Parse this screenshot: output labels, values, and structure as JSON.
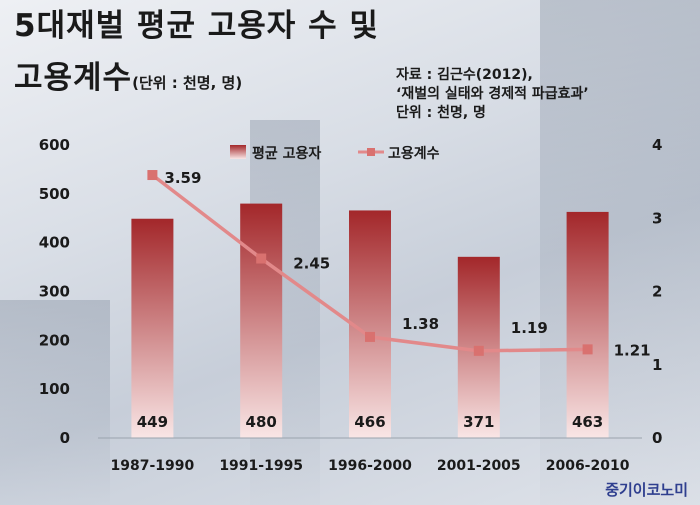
{
  "title": {
    "line1": "5대재벌 평균 고용자 수 및",
    "line2": "고용계수",
    "unit": "(단위 : 천명, 명)"
  },
  "source": {
    "line1": "자료 : 김근수(2012),",
    "line2": "‘재벌의 실태와 경제적 파급효과’",
    "line3": "단위 : 천명, 명"
  },
  "brand": "중기이코노미",
  "colors": {
    "bar_top": "#a3272a",
    "bar_bottom": "#f7e3e3",
    "line": "#e2898a",
    "marker": "#d9716f"
  },
  "chart_data": {
    "type": "bar",
    "categories": [
      "1987-1990",
      "1991-1995",
      "1996-2000",
      "2001-2005",
      "2006-2010"
    ],
    "series": [
      {
        "name": "평균 고용자",
        "type": "bar",
        "axis": "left",
        "values": [
          449,
          480,
          466,
          371,
          463
        ]
      },
      {
        "name": "고용계수",
        "type": "line",
        "axis": "right",
        "values": [
          3.59,
          2.45,
          1.38,
          1.19,
          1.21
        ]
      }
    ],
    "bar_labels": [
      "449",
      "480",
      "466",
      "371",
      "463"
    ],
    "line_labels": [
      "3.59",
      "2.45",
      "1.38",
      "1.19",
      "1.21"
    ],
    "y_left": {
      "range": [
        0,
        600
      ],
      "ticks": [
        "0",
        "100",
        "200",
        "300",
        "400",
        "500",
        "600"
      ]
    },
    "y_right": {
      "range": [
        0,
        4
      ],
      "ticks": [
        "0",
        "1",
        "2",
        "3",
        "4"
      ]
    },
    "legend_position": "top-center",
    "grid": false
  }
}
